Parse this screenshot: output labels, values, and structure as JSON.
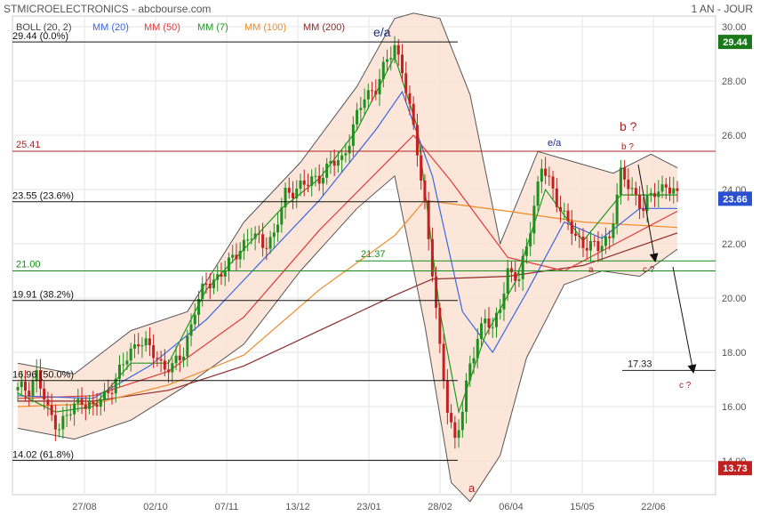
{
  "header": {
    "title": "STMICROELECTRONICS - abcbourse.com",
    "period": "1 AN - JOUR"
  },
  "legend": [
    {
      "label": "BOLL (20, 2)",
      "color": "#444444"
    },
    {
      "label": "MM (20)",
      "color": "#3a66e0"
    },
    {
      "label": "MM (50)",
      "color": "#e03a3a"
    },
    {
      "label": "MM (7)",
      "color": "#1f9a1f"
    },
    {
      "label": "MM (100)",
      "color": "#f08a2a"
    },
    {
      "label": "MM (200)",
      "color": "#8b2a2a"
    }
  ],
  "chart_data": {
    "type": "line",
    "title": "STMICROELECTRONICS",
    "x_ticks": [
      "27/08",
      "02/10",
      "07/11",
      "13/12",
      "23/01",
      "28/02",
      "06/04",
      "15/05",
      "22/06"
    ],
    "y_ticks": [
      "14.00",
      "16.00",
      "18.00",
      "20.00",
      "22.00",
      "24.00",
      "26.00",
      "28.00",
      "30.00"
    ],
    "ylim": [
      13.0,
      30.5
    ],
    "last_price": "23.66",
    "price_flags": [
      {
        "text": "29.44",
        "value": 29.44,
        "color": "#1a7a1a"
      },
      {
        "text": "23.66",
        "value": 23.66,
        "color": "#2a4fd0"
      },
      {
        "text": "13.73",
        "value": 13.73,
        "color": "#c02020"
      }
    ],
    "fibonacci_levels": [
      {
        "label": "29.44 (0.0%)",
        "value": 29.44
      },
      {
        "label": "23.55 (23.6%)",
        "value": 23.55
      },
      {
        "label": "19.91 (38.2%)",
        "value": 19.91
      },
      {
        "label": "16.96 (50.0%)",
        "value": 16.96
      },
      {
        "label": "14.02 (61.8%)",
        "value": 14.02
      }
    ],
    "horizontal_lines": [
      {
        "label": "25.41",
        "value": 25.41,
        "color": "#b02020"
      },
      {
        "label": "21.00",
        "value": 21.0,
        "color": "#1a8a1a"
      },
      {
        "label": "21.37",
        "value": 21.37,
        "color": "#1a8a1a"
      },
      {
        "label": "17.33",
        "value": 17.33,
        "color": "#222222"
      }
    ],
    "annotations": [
      {
        "text": "e/a",
        "color": "#1a2a8a"
      },
      {
        "text": "e/a",
        "color": "#1a2a8a"
      },
      {
        "text": "a",
        "color": "#b02020"
      },
      {
        "text": "b ?",
        "color": "#b02020"
      },
      {
        "text": "b ?",
        "color": "#b02020"
      },
      {
        "text": "a",
        "color": "#b02020"
      },
      {
        "text": "c ?",
        "color": "#b02020"
      },
      {
        "text": "c ?",
        "color": "#b02020"
      }
    ],
    "close_series": [
      {
        "x": 0,
        "y": 16.6
      },
      {
        "x": 3,
        "y": 16.7
      },
      {
        "x": 5,
        "y": 17.2
      },
      {
        "x": 8,
        "y": 15.8
      },
      {
        "x": 11,
        "y": 15.3
      },
      {
        "x": 14,
        "y": 15.8
      },
      {
        "x": 17,
        "y": 16.3
      },
      {
        "x": 20,
        "y": 15.9
      },
      {
        "x": 23,
        "y": 16.4
      },
      {
        "x": 26,
        "y": 17.0
      },
      {
        "x": 29,
        "y": 17.8
      },
      {
        "x": 32,
        "y": 18.5
      },
      {
        "x": 35,
        "y": 18.1
      },
      {
        "x": 38,
        "y": 17.6
      },
      {
        "x": 41,
        "y": 17.4
      },
      {
        "x": 44,
        "y": 18.0
      },
      {
        "x": 47,
        "y": 19.6
      },
      {
        "x": 50,
        "y": 20.5
      },
      {
        "x": 53,
        "y": 20.8
      },
      {
        "x": 56,
        "y": 21.2
      },
      {
        "x": 59,
        "y": 21.9
      },
      {
        "x": 62,
        "y": 22.3
      },
      {
        "x": 65,
        "y": 22.0
      },
      {
        "x": 68,
        "y": 22.3
      },
      {
        "x": 71,
        "y": 23.8
      },
      {
        "x": 74,
        "y": 24.1
      },
      {
        "x": 77,
        "y": 24.2
      },
      {
        "x": 80,
        "y": 24.5
      },
      {
        "x": 83,
        "y": 24.9
      },
      {
        "x": 86,
        "y": 25.1
      },
      {
        "x": 89,
        "y": 26.3
      },
      {
        "x": 92,
        "y": 27.4
      },
      {
        "x": 95,
        "y": 27.8
      },
      {
        "x": 98,
        "y": 28.7
      },
      {
        "x": 100,
        "y": 29.3
      },
      {
        "x": 102,
        "y": 28.5
      },
      {
        "x": 104,
        "y": 26.9
      },
      {
        "x": 106,
        "y": 25.4
      },
      {
        "x": 108,
        "y": 23.5
      },
      {
        "x": 110,
        "y": 21.0
      },
      {
        "x": 112,
        "y": 18.0
      },
      {
        "x": 114,
        "y": 16.0
      },
      {
        "x": 116,
        "y": 14.8
      },
      {
        "x": 118,
        "y": 15.8
      },
      {
        "x": 120,
        "y": 17.5
      },
      {
        "x": 122,
        "y": 18.6
      },
      {
        "x": 124,
        "y": 19.3
      },
      {
        "x": 126,
        "y": 18.7
      },
      {
        "x": 128,
        "y": 19.8
      },
      {
        "x": 130,
        "y": 21.0
      },
      {
        "x": 133,
        "y": 20.6
      },
      {
        "x": 136,
        "y": 22.7
      },
      {
        "x": 139,
        "y": 24.8
      },
      {
        "x": 142,
        "y": 24.0
      },
      {
        "x": 145,
        "y": 23.0
      },
      {
        "x": 148,
        "y": 22.2
      },
      {
        "x": 151,
        "y": 22.0
      },
      {
        "x": 154,
        "y": 21.8
      },
      {
        "x": 157,
        "y": 22.3
      },
      {
        "x": 160,
        "y": 24.5
      },
      {
        "x": 163,
        "y": 24.0
      },
      {
        "x": 166,
        "y": 23.3
      },
      {
        "x": 169,
        "y": 23.9
      },
      {
        "x": 172,
        "y": 24.2
      },
      {
        "x": 175,
        "y": 23.66
      }
    ],
    "ma_series": [
      {
        "name": "MM (200)",
        "color": "#8b2a2a",
        "values": [
          {
            "x": 0,
            "y": 16.2
          },
          {
            "x": 20,
            "y": 16.2
          },
          {
            "x": 40,
            "y": 16.6
          },
          {
            "x": 60,
            "y": 17.5
          },
          {
            "x": 80,
            "y": 18.8
          },
          {
            "x": 100,
            "y": 20.1
          },
          {
            "x": 110,
            "y": 20.7
          },
          {
            "x": 130,
            "y": 20.8
          },
          {
            "x": 150,
            "y": 21.2
          },
          {
            "x": 175,
            "y": 22.4
          }
        ]
      },
      {
        "name": "MM (100)",
        "color": "#f08a2a",
        "values": [
          {
            "x": 0,
            "y": 16.0
          },
          {
            "x": 20,
            "y": 16.1
          },
          {
            "x": 40,
            "y": 16.8
          },
          {
            "x": 60,
            "y": 17.9
          },
          {
            "x": 80,
            "y": 20.3
          },
          {
            "x": 100,
            "y": 22.3
          },
          {
            "x": 108,
            "y": 23.6
          },
          {
            "x": 130,
            "y": 23.2
          },
          {
            "x": 150,
            "y": 22.8
          },
          {
            "x": 175,
            "y": 22.6
          }
        ]
      },
      {
        "name": "MM (50)",
        "color": "#e03a3a",
        "values": [
          {
            "x": 0,
            "y": 16.3
          },
          {
            "x": 20,
            "y": 16.4
          },
          {
            "x": 40,
            "y": 17.3
          },
          {
            "x": 60,
            "y": 19.3
          },
          {
            "x": 80,
            "y": 22.5
          },
          {
            "x": 100,
            "y": 25.3
          },
          {
            "x": 105,
            "y": 26.0
          },
          {
            "x": 115,
            "y": 24.3
          },
          {
            "x": 130,
            "y": 21.5
          },
          {
            "x": 145,
            "y": 21.0
          },
          {
            "x": 160,
            "y": 22.1
          },
          {
            "x": 175,
            "y": 23.2
          }
        ]
      },
      {
        "name": "MM (20)",
        "color": "#3a66e0",
        "values": [
          {
            "x": 0,
            "y": 16.4
          },
          {
            "x": 20,
            "y": 16.3
          },
          {
            "x": 35,
            "y": 17.5
          },
          {
            "x": 50,
            "y": 19.2
          },
          {
            "x": 65,
            "y": 21.4
          },
          {
            "x": 80,
            "y": 23.6
          },
          {
            "x": 95,
            "y": 26.2
          },
          {
            "x": 102,
            "y": 27.6
          },
          {
            "x": 110,
            "y": 24.5
          },
          {
            "x": 118,
            "y": 19.5
          },
          {
            "x": 126,
            "y": 18.0
          },
          {
            "x": 135,
            "y": 20.2
          },
          {
            "x": 145,
            "y": 22.8
          },
          {
            "x": 155,
            "y": 22.2
          },
          {
            "x": 165,
            "y": 23.3
          },
          {
            "x": 175,
            "y": 23.3
          }
        ]
      },
      {
        "name": "MM (7)",
        "color": "#1f9a1f",
        "values": [
          {
            "x": 0,
            "y": 16.5
          },
          {
            "x": 10,
            "y": 15.8
          },
          {
            "x": 20,
            "y": 16.0
          },
          {
            "x": 30,
            "y": 17.6
          },
          {
            "x": 40,
            "y": 17.6
          },
          {
            "x": 50,
            "y": 20.3
          },
          {
            "x": 60,
            "y": 21.8
          },
          {
            "x": 70,
            "y": 23.3
          },
          {
            "x": 80,
            "y": 24.4
          },
          {
            "x": 90,
            "y": 26.2
          },
          {
            "x": 100,
            "y": 28.9
          },
          {
            "x": 106,
            "y": 26.3
          },
          {
            "x": 112,
            "y": 19.5
          },
          {
            "x": 117,
            "y": 15.8
          },
          {
            "x": 124,
            "y": 18.6
          },
          {
            "x": 132,
            "y": 20.6
          },
          {
            "x": 140,
            "y": 24.0
          },
          {
            "x": 150,
            "y": 22.1
          },
          {
            "x": 160,
            "y": 23.8
          },
          {
            "x": 175,
            "y": 23.8
          }
        ]
      }
    ],
    "bollinger_upper": [
      {
        "x": 0,
        "y": 17.6
      },
      {
        "x": 15,
        "y": 17.2
      },
      {
        "x": 30,
        "y": 18.8
      },
      {
        "x": 45,
        "y": 19.5
      },
      {
        "x": 60,
        "y": 22.8
      },
      {
        "x": 75,
        "y": 25.0
      },
      {
        "x": 90,
        "y": 27.8
      },
      {
        "x": 100,
        "y": 30.3
      },
      {
        "x": 105,
        "y": 30.5
      },
      {
        "x": 112,
        "y": 30.3
      },
      {
        "x": 120,
        "y": 27.5
      },
      {
        "x": 128,
        "y": 22.0
      },
      {
        "x": 138,
        "y": 25.4
      },
      {
        "x": 148,
        "y": 25.0
      },
      {
        "x": 158,
        "y": 24.6
      },
      {
        "x": 168,
        "y": 25.3
      },
      {
        "x": 175,
        "y": 24.8
      }
    ],
    "bollinger_lower": [
      {
        "x": 0,
        "y": 15.2
      },
      {
        "x": 15,
        "y": 14.8
      },
      {
        "x": 30,
        "y": 15.5
      },
      {
        "x": 45,
        "y": 16.8
      },
      {
        "x": 60,
        "y": 18.3
      },
      {
        "x": 75,
        "y": 21.0
      },
      {
        "x": 90,
        "y": 23.3
      },
      {
        "x": 100,
        "y": 24.5
      },
      {
        "x": 108,
        "y": 19.0
      },
      {
        "x": 115,
        "y": 13.2
      },
      {
        "x": 120,
        "y": 12.5
      },
      {
        "x": 128,
        "y": 14.2
      },
      {
        "x": 135,
        "y": 17.8
      },
      {
        "x": 145,
        "y": 20.5
      },
      {
        "x": 155,
        "y": 21.0
      },
      {
        "x": 165,
        "y": 20.8
      },
      {
        "x": 175,
        "y": 21.8
      }
    ]
  }
}
